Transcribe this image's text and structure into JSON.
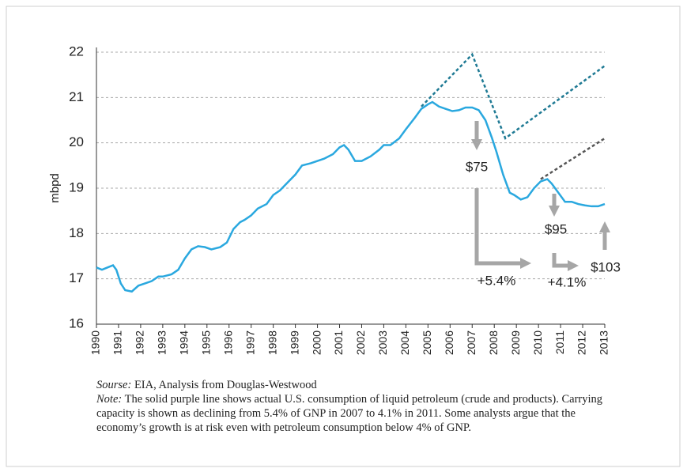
{
  "chart_data": {
    "type": "line",
    "y_label": "mbpd",
    "ylim": [
      16,
      22
    ],
    "yticks": [
      16,
      17,
      18,
      19,
      20,
      21,
      22
    ],
    "xlim": [
      1990,
      2013
    ],
    "xticks": [
      1990,
      1991,
      1992,
      1993,
      1994,
      1995,
      1996,
      1997,
      1998,
      1999,
      2000,
      2001,
      2002,
      2003,
      2004,
      2005,
      2006,
      2007,
      2008,
      2009,
      2010,
      2011,
      2012,
      2013
    ],
    "grid": true,
    "series": [
      {
        "color": "#2aa8df",
        "style": "solid",
        "x": [
          1990,
          1990.25,
          1990.5,
          1990.75,
          1990.9,
          1991.1,
          1991.3,
          1991.6,
          1991.9,
          1992.2,
          1992.5,
          1992.8,
          1993,
          1993.4,
          1993.7,
          1994,
          1994.3,
          1994.6,
          1994.9,
          1995.2,
          1995.6,
          1995.9,
          1996.2,
          1996.5,
          1996.7,
          1997,
          1997.3,
          1997.7,
          1998,
          1998.3,
          1998.7,
          1999,
          1999.3,
          1999.7,
          2000,
          2000.3,
          2000.7,
          2001,
          2001.2,
          2001.4,
          2001.7,
          2002,
          2002.4,
          2002.8,
          2003,
          2003.3,
          2003.7,
          2004,
          2004.4,
          2004.7,
          2005,
          2005.2,
          2005.5,
          2005.8,
          2006.1,
          2006.4,
          2006.7,
          2007,
          2007.3,
          2007.6,
          2007.9,
          2008.1,
          2008.4,
          2008.7,
          2008.9,
          2009.2,
          2009.5,
          2009.8,
          2010.1,
          2010.4,
          2010.6,
          2010.9,
          2011.2,
          2011.5,
          2011.8,
          2012.1,
          2012.4,
          2012.7,
          2013
        ],
        "values": [
          17.25,
          17.2,
          17.25,
          17.3,
          17.2,
          16.9,
          16.75,
          16.72,
          16.85,
          16.9,
          16.95,
          17.05,
          17.05,
          17.1,
          17.2,
          17.45,
          17.65,
          17.72,
          17.7,
          17.65,
          17.7,
          17.8,
          18.1,
          18.25,
          18.3,
          18.4,
          18.55,
          18.65,
          18.85,
          18.95,
          19.15,
          19.3,
          19.5,
          19.55,
          19.6,
          19.65,
          19.75,
          19.9,
          19.95,
          19.85,
          19.6,
          19.6,
          19.7,
          19.85,
          19.95,
          19.95,
          20.1,
          20.3,
          20.55,
          20.75,
          20.85,
          20.9,
          20.8,
          20.75,
          20.7,
          20.72,
          20.78,
          20.78,
          20.72,
          20.5,
          20.1,
          19.8,
          19.3,
          18.9,
          18.85,
          18.75,
          18.8,
          19.0,
          19.15,
          19.2,
          19.1,
          18.9,
          18.7,
          18.7,
          18.65,
          18.62,
          18.6,
          18.6,
          18.65
        ]
      },
      {
        "color": "#1f7a94",
        "style": "dashed",
        "x": [
          2004.7,
          2007,
          2008.5,
          2013
        ],
        "values": [
          20.8,
          21.95,
          20.1,
          21.7
        ]
      },
      {
        "color": "#555555",
        "style": "dashed",
        "x": [
          2010.1,
          2013
        ],
        "values": [
          19.2,
          20.1
        ]
      }
    ],
    "annotations": [
      "$75",
      "$95",
      "$103",
      "+5.4%",
      "+4.1%"
    ]
  },
  "source": {
    "label": "Sourse:",
    "text": "EIA, Analysis from Douglas-Westwood"
  },
  "note": {
    "label": "Note:",
    "lines": [
      "The solid purple line shows actual U.S. consumption of liquid petroleum (crude and products). Carrying",
      "capacity is shown as declining from 5.4% of GNP in 2007 to 4.1% in 2011. Some analysts argue that the",
      "economy’s growth is at risk even with petroleum consumption below 4% of GNP."
    ]
  }
}
